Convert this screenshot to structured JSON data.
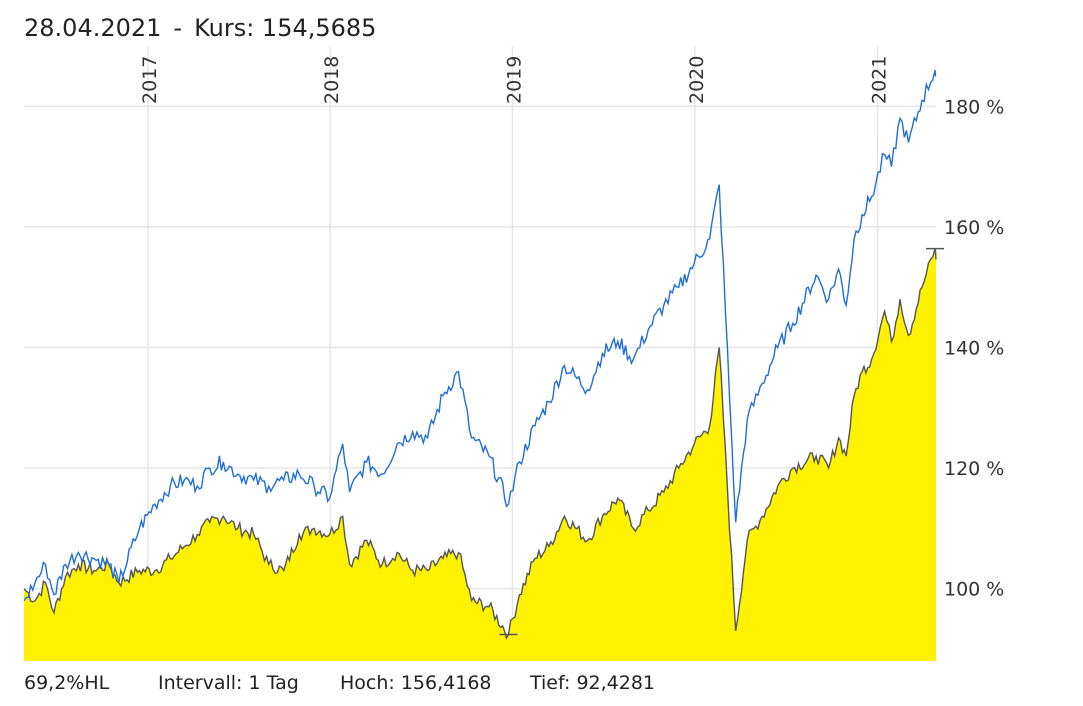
{
  "header": {
    "date": "28.04.2021",
    "separator": "-",
    "kurs_label": "Kurs: 154,5685"
  },
  "footer": {
    "hl": "69,2%HL",
    "intervall": "Intervall: 1 Tag",
    "hoch": "Hoch: 156,4168",
    "tief": "Tief: 92,4281"
  },
  "chart_data": {
    "type": "area",
    "x_domain": [
      "2016-04-28",
      "2021-04-28"
    ],
    "ylim": [
      88,
      190
    ],
    "y_ticks": [
      {
        "value": 100,
        "label": "100 %"
      },
      {
        "value": 120,
        "label": "120 %"
      },
      {
        "value": 140,
        "label": "140 %"
      },
      {
        "value": 160,
        "label": "160 %"
      },
      {
        "value": 180,
        "label": "180 %"
      }
    ],
    "x_ticks": [
      {
        "date": "2017-01-01",
        "label": "2017"
      },
      {
        "date": "2018-01-01",
        "label": "2018"
      },
      {
        "date": "2019-01-01",
        "label": "2019"
      },
      {
        "date": "2020-01-01",
        "label": "2020"
      },
      {
        "date": "2021-01-01",
        "label": "2021"
      }
    ],
    "grid": true,
    "colors": {
      "area_fill": "#fff200",
      "area_line": "#555555",
      "benchmark_line": "#1f6fd6",
      "grid": "#e6e6e6"
    },
    "high_marker": {
      "date": "2021-04-26",
      "value": 156.4
    },
    "low_marker": {
      "date": "2018-12-24",
      "value": 92.4
    },
    "series": [
      {
        "role": "area",
        "points": [
          [
            "2016-04-28",
            100
          ],
          [
            "2016-05-20",
            98
          ],
          [
            "2016-06-10",
            101
          ],
          [
            "2016-06-27",
            96
          ],
          [
            "2016-07-20",
            102
          ],
          [
            "2016-08-15",
            104
          ],
          [
            "2016-09-15",
            103
          ],
          [
            "2016-10-15",
            104
          ],
          [
            "2016-11-04",
            101
          ],
          [
            "2016-12-15",
            103
          ],
          [
            "2017-01-15",
            103
          ],
          [
            "2017-02-15",
            105
          ],
          [
            "2017-03-15",
            107
          ],
          [
            "2017-04-10",
            109
          ],
          [
            "2017-05-05",
            111
          ],
          [
            "2017-06-01",
            112
          ],
          [
            "2017-06-30",
            110
          ],
          [
            "2017-08-01",
            109
          ],
          [
            "2017-08-31",
            104
          ],
          [
            "2017-09-30",
            103
          ],
          [
            "2017-10-31",
            109
          ],
          [
            "2017-11-30",
            110
          ],
          [
            "2017-12-31",
            109
          ],
          [
            "2018-01-26",
            112
          ],
          [
            "2018-02-09",
            104
          ],
          [
            "2018-03-15",
            108
          ],
          [
            "2018-04-15",
            104
          ],
          [
            "2018-05-15",
            106
          ],
          [
            "2018-06-15",
            103
          ],
          [
            "2018-07-15",
            103
          ],
          [
            "2018-08-15",
            105
          ],
          [
            "2018-09-15",
            106
          ],
          [
            "2018-10-11",
            98
          ],
          [
            "2018-11-15",
            97
          ],
          [
            "2018-12-24",
            92.4
          ],
          [
            "2019-01-15",
            99
          ],
          [
            "2019-02-15",
            105
          ],
          [
            "2019-03-15",
            107
          ],
          [
            "2019-04-15",
            112
          ],
          [
            "2019-05-31",
            108
          ],
          [
            "2019-06-30",
            112
          ],
          [
            "2019-07-31",
            115
          ],
          [
            "2019-08-31",
            110
          ],
          [
            "2019-09-30",
            113
          ],
          [
            "2019-10-31",
            116
          ],
          [
            "2019-11-30",
            120
          ],
          [
            "2019-12-31",
            124
          ],
          [
            "2020-01-31",
            127
          ],
          [
            "2020-02-19",
            140
          ],
          [
            "2020-03-23",
            93
          ],
          [
            "2020-04-15",
            108
          ],
          [
            "2020-05-15",
            112
          ],
          [
            "2020-06-15",
            117
          ],
          [
            "2020-07-15",
            120
          ],
          [
            "2020-08-31",
            122
          ],
          [
            "2020-09-25",
            120
          ],
          [
            "2020-10-15",
            125
          ],
          [
            "2020-10-30",
            122
          ],
          [
            "2020-11-15",
            132
          ],
          [
            "2020-12-01",
            136
          ],
          [
            "2020-12-20",
            138
          ],
          [
            "2021-01-15",
            146
          ],
          [
            "2021-01-29",
            141
          ],
          [
            "2021-02-15",
            148
          ],
          [
            "2021-03-04",
            142
          ],
          [
            "2021-03-31",
            150
          ],
          [
            "2021-04-26",
            156.4
          ],
          [
            "2021-04-28",
            154.6
          ]
        ]
      },
      {
        "role": "benchmark",
        "points": [
          [
            "2016-04-28",
            98
          ],
          [
            "2016-05-20",
            101
          ],
          [
            "2016-06-10",
            104
          ],
          [
            "2016-06-27",
            99
          ],
          [
            "2016-07-20",
            104
          ],
          [
            "2016-08-15",
            106
          ],
          [
            "2016-09-15",
            105
          ],
          [
            "2016-10-15",
            104
          ],
          [
            "2016-11-04",
            101
          ],
          [
            "2016-12-15",
            110
          ],
          [
            "2017-01-15",
            114
          ],
          [
            "2017-02-15",
            117
          ],
          [
            "2017-03-15",
            118
          ],
          [
            "2017-04-10",
            117
          ],
          [
            "2017-05-05",
            120
          ],
          [
            "2017-06-01",
            121
          ],
          [
            "2017-06-30",
            119
          ],
          [
            "2017-08-01",
            118
          ],
          [
            "2017-08-31",
            117
          ],
          [
            "2017-09-30",
            118
          ],
          [
            "2017-10-31",
            119
          ],
          [
            "2017-11-30",
            117
          ],
          [
            "2017-12-31",
            115
          ],
          [
            "2018-01-26",
            124
          ],
          [
            "2018-02-09",
            116
          ],
          [
            "2018-03-15",
            121
          ],
          [
            "2018-04-15",
            119
          ],
          [
            "2018-05-15",
            124
          ],
          [
            "2018-06-15",
            126
          ],
          [
            "2018-07-15",
            125
          ],
          [
            "2018-08-15",
            132
          ],
          [
            "2018-09-15",
            136
          ],
          [
            "2018-10-11",
            125
          ],
          [
            "2018-11-15",
            122
          ],
          [
            "2018-12-24",
            114
          ],
          [
            "2019-01-15",
            121
          ],
          [
            "2019-02-15",
            127
          ],
          [
            "2019-03-15",
            131
          ],
          [
            "2019-04-15",
            137
          ],
          [
            "2019-05-31",
            133
          ],
          [
            "2019-06-30",
            139
          ],
          [
            "2019-07-31",
            141
          ],
          [
            "2019-08-31",
            138
          ],
          [
            "2019-09-30",
            143
          ],
          [
            "2019-10-31",
            147
          ],
          [
            "2019-11-30",
            150
          ],
          [
            "2019-12-31",
            154
          ],
          [
            "2020-01-31",
            158
          ],
          [
            "2020-02-19",
            167
          ],
          [
            "2020-03-23",
            111
          ],
          [
            "2020-04-15",
            128
          ],
          [
            "2020-05-15",
            134
          ],
          [
            "2020-06-15",
            140
          ],
          [
            "2020-07-15",
            144
          ],
          [
            "2020-08-31",
            152
          ],
          [
            "2020-09-25",
            148
          ],
          [
            "2020-10-15",
            153
          ],
          [
            "2020-10-30",
            147
          ],
          [
            "2020-11-15",
            158
          ],
          [
            "2020-12-01",
            162
          ],
          [
            "2020-12-20",
            165
          ],
          [
            "2021-01-15",
            172
          ],
          [
            "2021-01-29",
            170
          ],
          [
            "2021-02-15",
            178
          ],
          [
            "2021-03-04",
            174
          ],
          [
            "2021-03-31",
            181
          ],
          [
            "2021-04-26",
            186
          ],
          [
            "2021-04-28",
            185
          ]
        ]
      }
    ]
  }
}
